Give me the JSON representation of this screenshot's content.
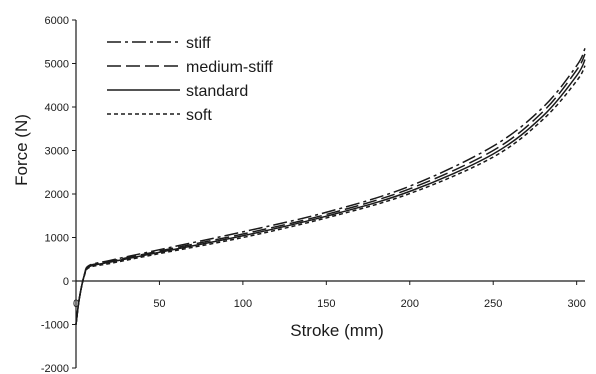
{
  "chart_data": {
    "type": "line",
    "title": "",
    "xlabel": "Stroke (mm)",
    "ylabel": "Force (N)",
    "xlim": [
      0,
      305
    ],
    "ylim": [
      -2000,
      6000
    ],
    "x_ticks": [
      0,
      50,
      100,
      150,
      200,
      250,
      300
    ],
    "y_ticks": [
      -2000,
      -1000,
      0,
      1000,
      2000,
      3000,
      4000,
      5000,
      6000
    ],
    "grid": false,
    "legend_position": "top-left",
    "series": [
      {
        "name": "stiff",
        "line_style": "dash-dot",
        "x": [
          0,
          2,
          5,
          8,
          20,
          50,
          100,
          150,
          200,
          250,
          280,
          300,
          305
        ],
        "y": [
          -1000,
          -400,
          150,
          360,
          470,
          720,
          1130,
          1580,
          2180,
          3100,
          4000,
          4950,
          5350
        ]
      },
      {
        "name": "medium-stiff",
        "line_style": "long-dash",
        "x": [
          0,
          2,
          5,
          8,
          20,
          50,
          100,
          150,
          200,
          250,
          280,
          300,
          305
        ],
        "y": [
          -1000,
          -400,
          140,
          350,
          450,
          690,
          1080,
          1530,
          2120,
          3000,
          3900,
          4850,
          5220
        ]
      },
      {
        "name": "standard",
        "line_style": "solid",
        "x": [
          0,
          2,
          5,
          8,
          20,
          50,
          100,
          150,
          200,
          250,
          280,
          300,
          305
        ],
        "y": [
          -1000,
          -400,
          130,
          330,
          430,
          660,
          1040,
          1490,
          2060,
          2920,
          3800,
          4720,
          5090
        ]
      },
      {
        "name": "soft",
        "line_style": "short-dash",
        "x": [
          0,
          2,
          5,
          8,
          20,
          50,
          100,
          150,
          200,
          250,
          280,
          300,
          305
        ],
        "y": [
          -1000,
          -400,
          120,
          310,
          400,
          630,
          1000,
          1450,
          2010,
          2850,
          3720,
          4600,
          4950
        ]
      }
    ]
  }
}
